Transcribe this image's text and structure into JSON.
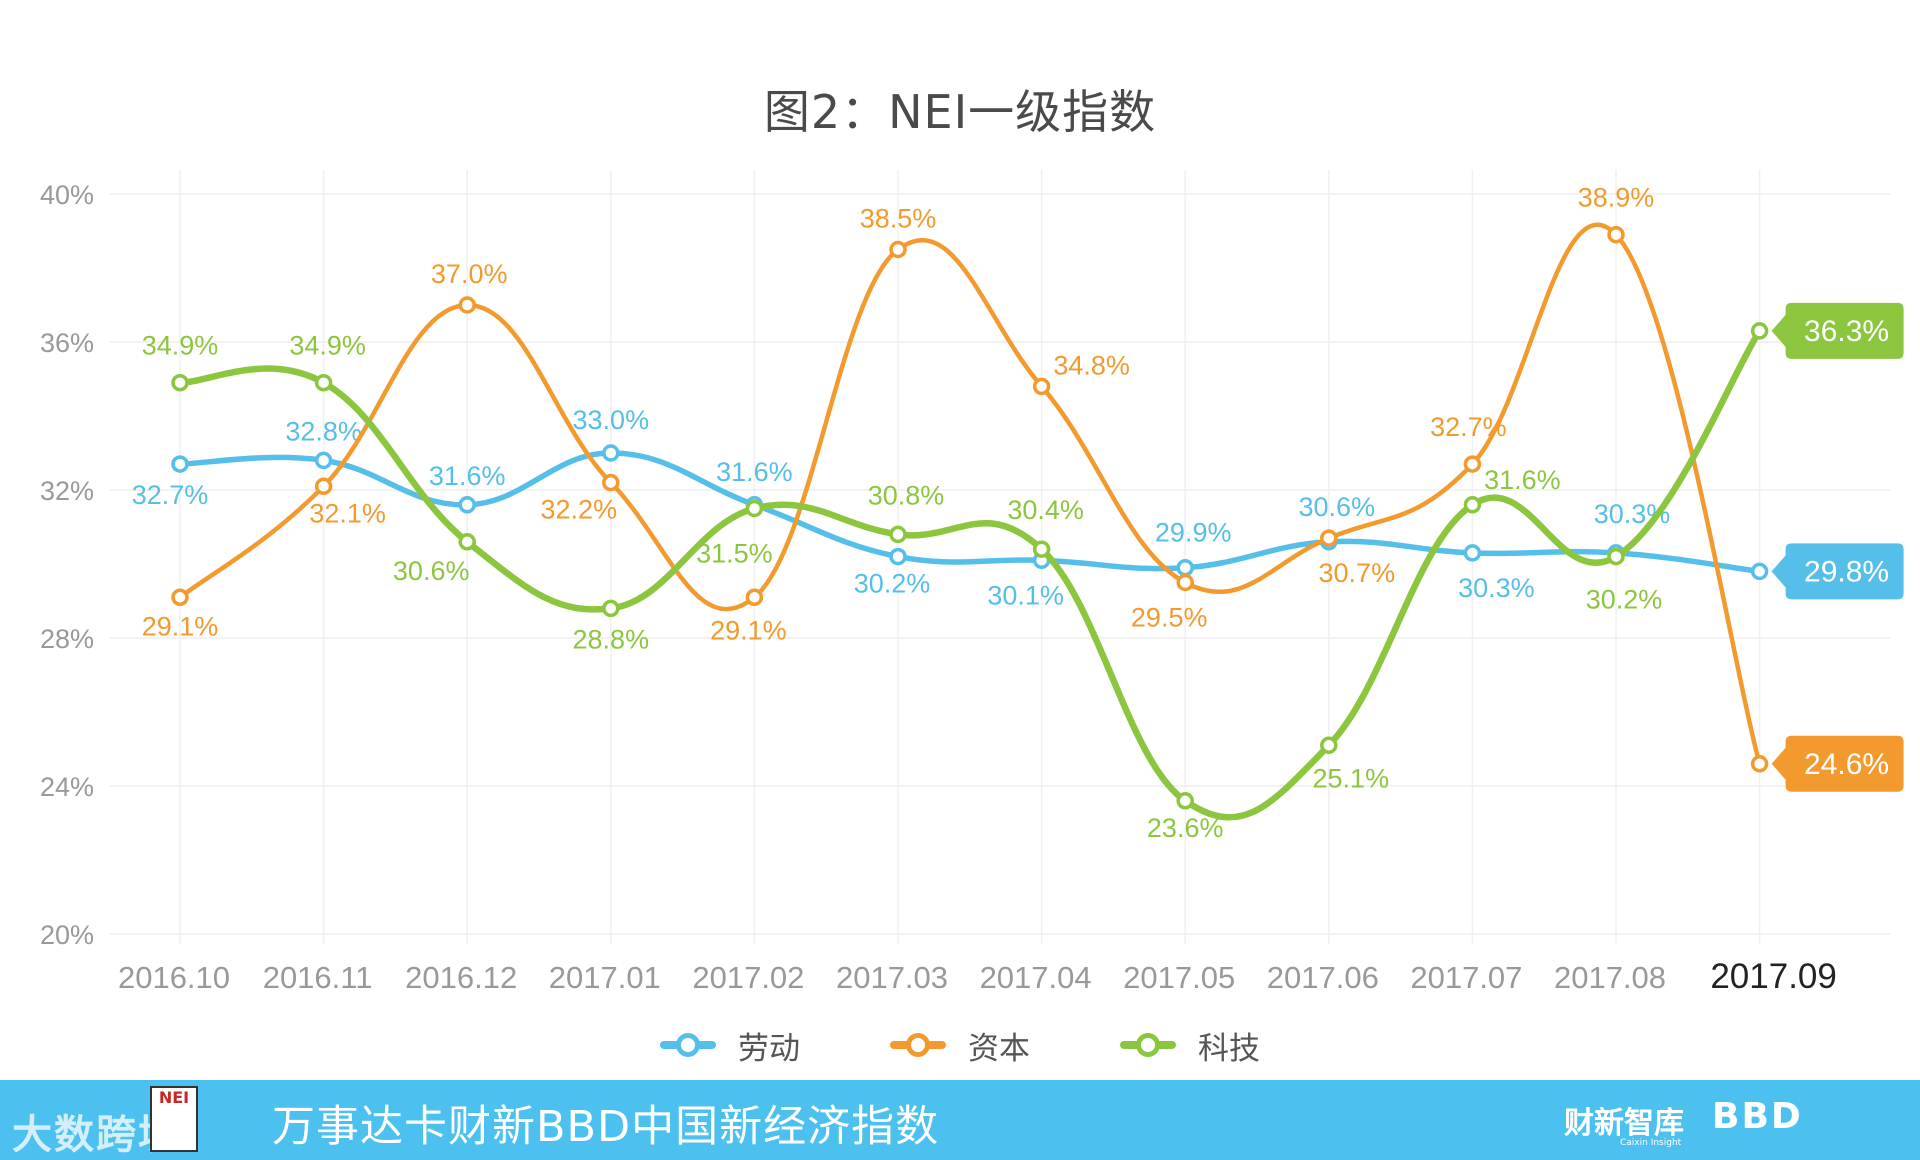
{
  "chart_data": {
    "type": "line",
    "title": "图2：NEI一级指数",
    "xlabel": "",
    "ylabel": "",
    "categories": [
      "2016.10",
      "2016.11",
      "2016.12",
      "2017.01",
      "2017.02",
      "2017.03",
      "2017.04",
      "2017.05",
      "2017.06",
      "2017.07",
      "2017.08",
      "2017.09"
    ],
    "yticks": [
      "40%",
      "36%",
      "32%",
      "28%",
      "24%",
      "20%"
    ],
    "ylim": [
      20,
      40
    ],
    "grid": true,
    "legend_position": "bottom",
    "series": [
      {
        "name": "劳动",
        "color": "#55bfe9",
        "values": [
          32.7,
          32.8,
          31.6,
          33.0,
          31.6,
          30.2,
          30.1,
          29.9,
          30.6,
          30.3,
          30.3,
          29.8
        ],
        "labels": [
          "32.7%",
          "32.8%",
          "31.6%",
          "33.0%",
          "31.6%",
          "30.2%",
          "30.1%",
          "29.9%",
          "30.6%",
          "30.3%",
          "30.3%",
          "29.8%"
        ]
      },
      {
        "name": "资本",
        "color": "#f39a2e",
        "values": [
          29.1,
          32.1,
          37.0,
          32.2,
          29.1,
          38.5,
          34.8,
          29.5,
          30.7,
          32.7,
          38.9,
          24.6
        ],
        "labels": [
          "29.1%",
          "32.1%",
          "37.0%",
          "32.2%",
          "29.1%",
          "38.5%",
          "34.8%",
          "29.5%",
          "30.7%",
          "32.7%",
          "38.9%",
          "24.6%"
        ]
      },
      {
        "name": "科技",
        "color": "#8cc63f",
        "values": [
          34.9,
          34.9,
          30.6,
          28.8,
          31.5,
          30.8,
          30.4,
          23.6,
          25.1,
          31.6,
          30.2,
          36.3
        ],
        "labels": [
          "34.9%",
          "34.9%",
          "30.6%",
          "28.8%",
          "31.5%",
          "30.8%",
          "30.4%",
          "23.6%",
          "25.1%",
          "31.6%",
          "30.2%",
          "36.3%"
        ]
      }
    ]
  },
  "footer": {
    "title": "万事达卡财新BBD中国新经济指数",
    "left_logo": "大数跨境",
    "badge": "NEI",
    "right_logo1": "财新智库",
    "right_logo1_sub": "Caixin Insight",
    "right_logo2": "BBD"
  }
}
